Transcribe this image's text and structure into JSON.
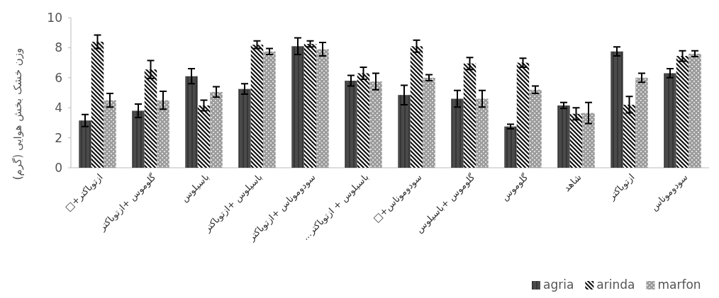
{
  "chart_data": {
    "type": "bar",
    "ylabel": "وزن خشک بخش هوایی (گرم)",
    "categories": [
      "□+ازتوباکتر",
      "گلوموس +ازتوباکتر",
      "باسیلوس",
      "باسیلوس +ازتوباکتر",
      "سودوموناس +ازتوباکتر",
      "...باسیلوس + ازتوباکتر",
      "□+سودوموناس",
      "گلوموس +باسیلوس",
      "گلوموس",
      "شاهد",
      "ازتوباکتر",
      "سودوموناس"
    ],
    "series": [
      {
        "name": "agria",
        "color": "#4a4a4a",
        "values": [
          3.15,
          3.8,
          6.1,
          5.25,
          8.1,
          5.8,
          4.85,
          4.6,
          2.75,
          4.15,
          7.75,
          6.3
        ],
        "errors": [
          0.4,
          0.45,
          0.5,
          0.35,
          0.55,
          0.35,
          0.65,
          0.55,
          0.15,
          0.2,
          0.3,
          0.3
        ]
      },
      {
        "name": "arinda",
        "color": "#111111",
        "values": [
          8.4,
          6.55,
          4.15,
          8.2,
          8.25,
          6.3,
          8.1,
          6.95,
          7.0,
          3.6,
          4.2,
          7.45
        ],
        "errors": [
          0.45,
          0.6,
          0.35,
          0.25,
          0.2,
          0.4,
          0.4,
          0.4,
          0.3,
          0.4,
          0.55,
          0.35
        ]
      },
      {
        "name": "marfon",
        "color": "#9c9c9c",
        "values": [
          4.5,
          4.5,
          5.05,
          7.75,
          7.9,
          5.75,
          6.0,
          4.6,
          5.2,
          3.65,
          6.0,
          7.6
        ],
        "errors": [
          0.45,
          0.6,
          0.35,
          0.2,
          0.45,
          0.55,
          0.2,
          0.55,
          0.25,
          0.7,
          0.3,
          0.2
        ]
      }
    ],
    "ylim": [
      0,
      10
    ],
    "yticks": [
      0,
      2,
      4,
      6,
      8,
      10
    ],
    "grid": false,
    "legend": "bottom right"
  }
}
